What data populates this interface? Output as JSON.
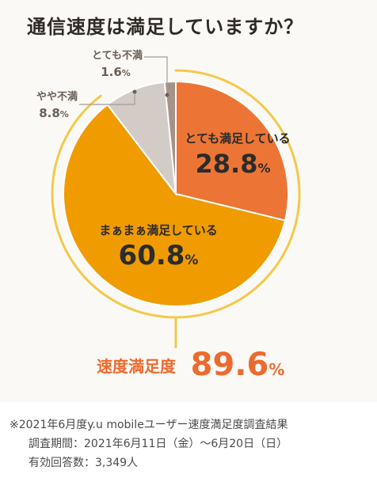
{
  "title": "通信速度は満足していますか？",
  "chart_data": {
    "type": "pie",
    "title": "通信速度は満足していますか？",
    "slices": [
      {
        "label": "とても満足している",
        "value": 28.8,
        "display": "28.8",
        "color": "#ec7535"
      },
      {
        "label": "まぁまぁ満足している",
        "value": 60.8,
        "display": "60.8",
        "color": "#f09b00"
      },
      {
        "label": "やや不満",
        "value": 8.8,
        "display": "8.8",
        "color": "#d2cbc6"
      },
      {
        "label": "とても不満",
        "value": 1.6,
        "display": "1.6",
        "color": "#a59288"
      }
    ],
    "unit": "%",
    "highlight_ring_color": "#f3c94a",
    "summary": {
      "label": "速度満足度",
      "value": "89.6",
      "unit": "%",
      "color": "#ec6a2e"
    }
  },
  "footnote": {
    "line1": "※2021年6月度y.u mobileユーザー速度満足度調査結果",
    "line2": "調査期間：2021年6月11日（金）～6月20日（日）",
    "line3": "有効回答数：3,349人"
  }
}
